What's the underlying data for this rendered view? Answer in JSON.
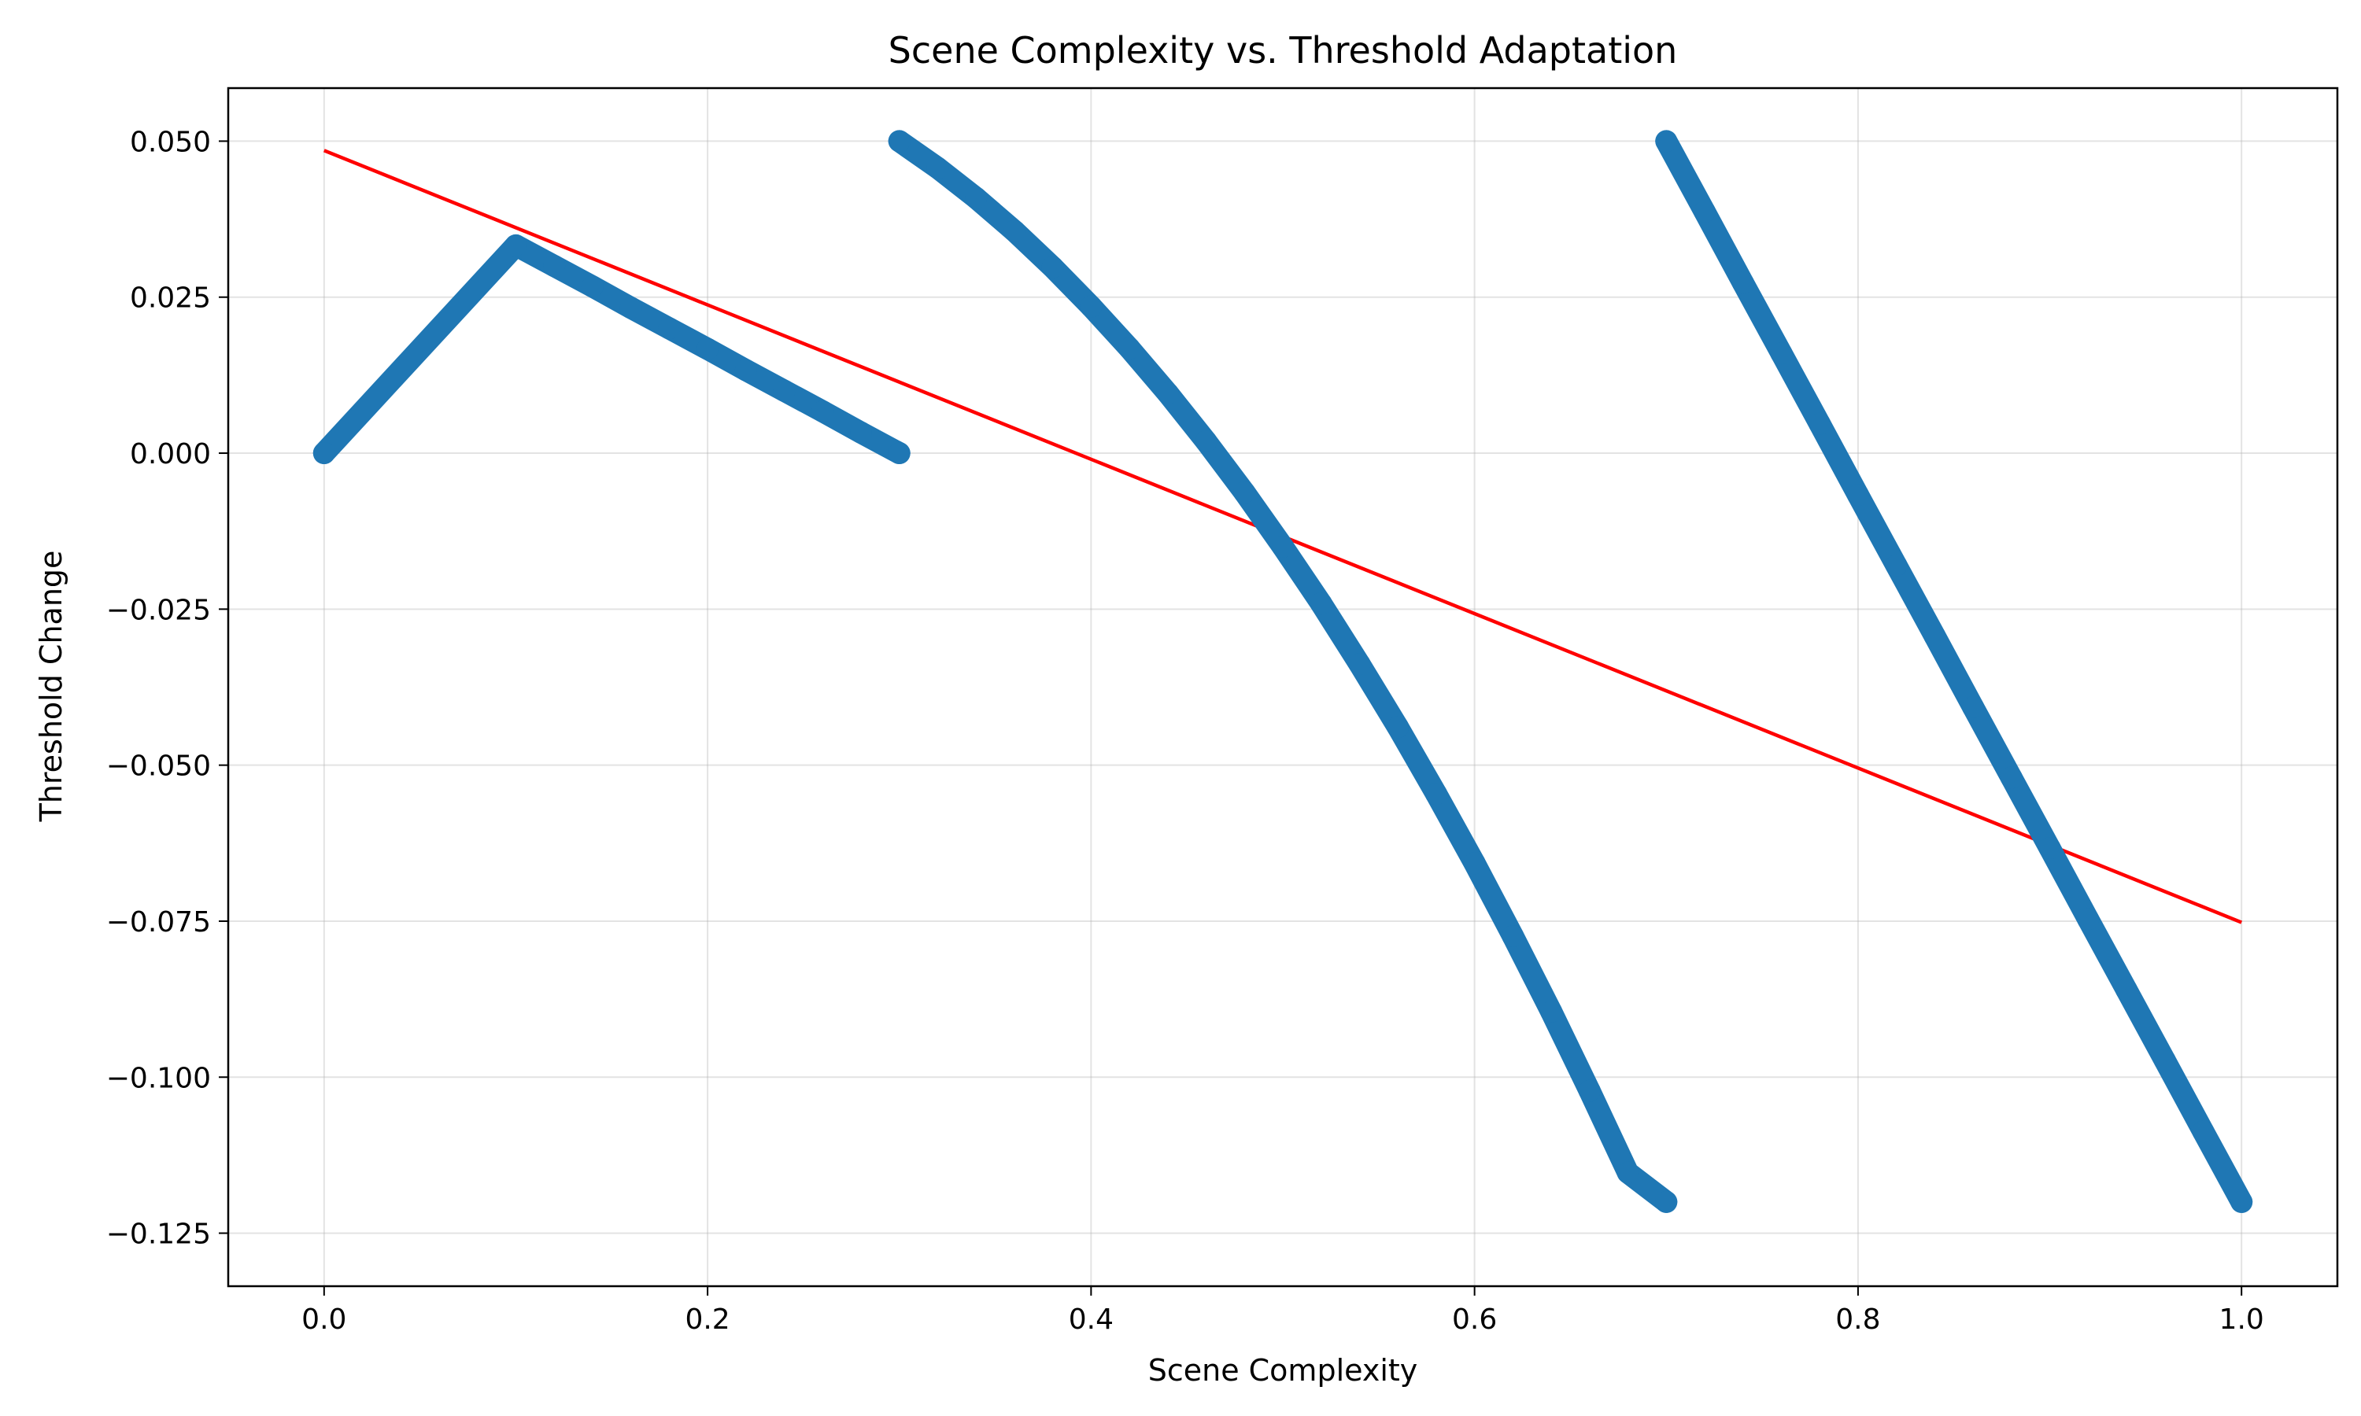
{
  "chart_data": {
    "type": "scatter",
    "title": "Scene Complexity vs. Threshold Adaptation",
    "xlabel": "Scene Complexity",
    "ylabel": "Threshold Change",
    "xlim": [
      -0.05,
      1.05
    ],
    "ylim": [
      -0.1335,
      0.0585
    ],
    "grid": true,
    "x_ticks": [
      0.0,
      0.2,
      0.4,
      0.6,
      0.8,
      1.0
    ],
    "x_tick_labels": [
      "0.0",
      "0.2",
      "0.4",
      "0.6",
      "0.8",
      "1.0"
    ],
    "y_ticks": [
      0.05,
      0.025,
      0.0,
      -0.025,
      -0.05,
      -0.075,
      -0.1,
      -0.125
    ],
    "y_tick_labels": [
      "0.050",
      "0.025",
      "0.000",
      "−0.025",
      "−0.050",
      "−0.075",
      "−0.100",
      "−0.125"
    ],
    "colors": {
      "scatter": "#1f77b4",
      "trend": "#ff0000"
    },
    "series": [
      {
        "kind": "scatter",
        "x": [
          0.0,
          0.1,
          0.12,
          0.14,
          0.16,
          0.18,
          0.2,
          0.22,
          0.24,
          0.26,
          0.28,
          0.3,
          0.3,
          0.32,
          0.34,
          0.36,
          0.38,
          0.4,
          0.42,
          0.44,
          0.46,
          0.48,
          0.5,
          0.52,
          0.54,
          0.56,
          0.58,
          0.6,
          0.62,
          0.64,
          0.66,
          0.68,
          0.7,
          0.7,
          0.72,
          0.74,
          0.76,
          0.78,
          0.8,
          0.82,
          0.84,
          0.86,
          0.88,
          0.9,
          0.92,
          0.94,
          0.96,
          0.98,
          1.0
        ],
        "y": [
          0.0,
          0.0333,
          0.03,
          0.0267,
          0.0233,
          0.02,
          0.0167,
          0.0133,
          0.01,
          0.0067,
          0.0033,
          0.0,
          0.05,
          0.0457,
          0.0409,
          0.0356,
          0.0298,
          0.0235,
          0.0168,
          0.0096,
          0.0019,
          -0.0063,
          -0.015,
          -0.0241,
          -0.0338,
          -0.0439,
          -0.0546,
          -0.0657,
          -0.0774,
          -0.0895,
          -0.1022,
          -0.1153,
          -0.12,
          0.05,
          0.0387,
          0.0273,
          0.016,
          0.0047,
          -0.0067,
          -0.018,
          -0.0293,
          -0.0407,
          -0.052,
          -0.0633,
          -0.0747,
          -0.086,
          -0.0973,
          -0.1087,
          -0.12
        ]
      },
      {
        "kind": "trend",
        "x": [
          0.0,
          1.0
        ],
        "y": [
          0.0485,
          -0.0752
        ]
      }
    ]
  }
}
